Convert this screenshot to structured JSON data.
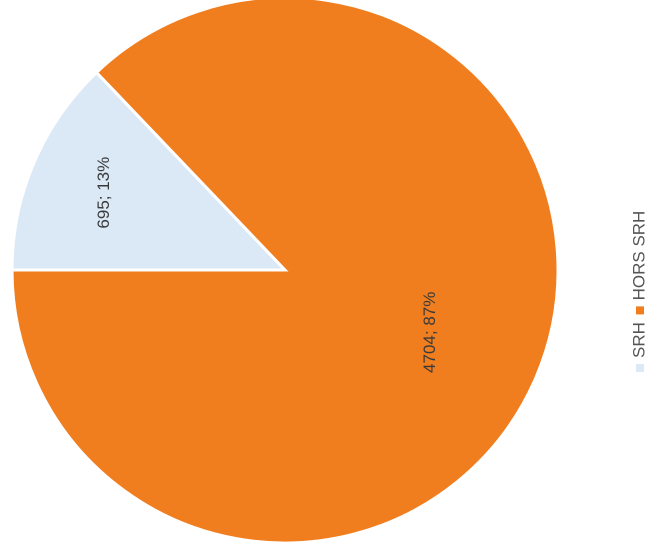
{
  "chart_data": {
    "type": "pie",
    "categories": [
      "SRH",
      "HORS SRH"
    ],
    "values": [
      695,
      4704
    ],
    "percents": [
      13,
      87
    ],
    "data_labels": [
      "695; 13%",
      "4704; 87%"
    ],
    "colors": [
      "#dbe8f6",
      "#f07e1f"
    ],
    "legend": {
      "position": "right",
      "entries": [
        "SRH",
        "HORS SRH"
      ]
    },
    "title": ""
  }
}
